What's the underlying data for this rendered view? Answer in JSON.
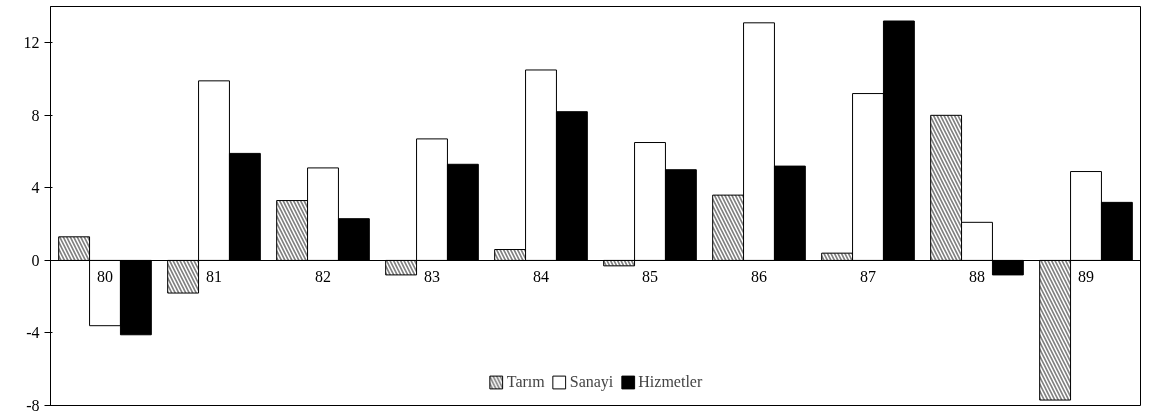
{
  "chart_data": {
    "type": "bar",
    "categories": [
      "80",
      "81",
      "82",
      "83",
      "84",
      "85",
      "86",
      "87",
      "88",
      "89"
    ],
    "series": [
      {
        "name": "Tarım",
        "color": "#808080",
        "values": [
          1.3,
          -1.8,
          3.3,
          -0.8,
          0.6,
          -0.3,
          3.6,
          0.4,
          8.0,
          -7.7
        ]
      },
      {
        "name": "Sanayi",
        "color": "#ffffff",
        "values": [
          -3.6,
          9.9,
          5.1,
          6.7,
          10.5,
          6.5,
          13.1,
          9.2,
          2.1,
          4.9
        ]
      },
      {
        "name": "Hizmetler",
        "color": "#000000",
        "values": [
          -4.1,
          5.9,
          2.3,
          5.3,
          8.2,
          5.0,
          5.2,
          13.2,
          -0.8,
          3.2
        ]
      }
    ],
    "ylim": [
      -8,
      14
    ],
    "yticks": [
      -8,
      -4,
      0,
      4,
      8,
      12
    ],
    "grid": false,
    "legend": "bottom"
  }
}
